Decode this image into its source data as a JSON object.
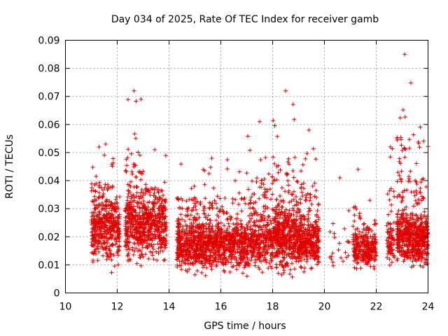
{
  "chart_data": {
    "type": "scatter",
    "title": "Day 034 of 2025, Rate Of TEC Index for receiver gamb",
    "xlabel": "GPS time / hours",
    "ylabel": "ROTI / TECUs",
    "xlim": [
      10,
      24
    ],
    "ylim": [
      0,
      0.09
    ],
    "x_ticks": [
      10,
      12,
      14,
      16,
      18,
      20,
      22,
      24
    ],
    "x_tick_labels": [
      "10",
      "12",
      "14",
      "16",
      "18",
      "20",
      "22",
      "24"
    ],
    "y_ticks": [
      0,
      0.01,
      0.02,
      0.03,
      0.04,
      0.05,
      0.06,
      0.07,
      0.08,
      0.09
    ],
    "y_tick_labels": [
      "0",
      "0.01",
      "0.02",
      "0.03",
      "0.04",
      "0.05",
      "0.06",
      "0.07",
      "0.08",
      "0.09"
    ],
    "grid": true,
    "marker": "+",
    "color": "#e00000",
    "series": [
      {
        "name": "ROTI",
        "clusters": [
          {
            "x_range": [
              11.0,
              12.1
            ],
            "y_min": 0.005,
            "y_typ": 0.022,
            "y_max": 0.053,
            "count": 420
          },
          {
            "x_range": [
              12.3,
              13.0
            ],
            "y_min": 0.007,
            "y_typ": 0.024,
            "y_max": 0.072,
            "count": 320
          },
          {
            "x_range": [
              13.0,
              13.9
            ],
            "y_min": 0.008,
            "y_typ": 0.024,
            "y_max": 0.051,
            "count": 360
          },
          {
            "x_range": [
              14.3,
              17.0
            ],
            "y_min": 0.005,
            "y_typ": 0.017,
            "y_max": 0.048,
            "count": 1100
          },
          {
            "x_range": [
              17.0,
              18.0
            ],
            "y_min": 0.005,
            "y_typ": 0.018,
            "y_max": 0.061,
            "count": 380
          },
          {
            "x_range": [
              18.0,
              19.0
            ],
            "y_min": 0.004,
            "y_typ": 0.02,
            "y_max": 0.072,
            "count": 480
          },
          {
            "x_range": [
              19.0,
              19.8
            ],
            "y_min": 0.006,
            "y_typ": 0.018,
            "y_max": 0.058,
            "count": 360
          },
          {
            "x_range": [
              20.2,
              21.0
            ],
            "y_min": 0.007,
            "y_typ": 0.016,
            "y_max": 0.041,
            "count": 22
          },
          {
            "x_range": [
              21.1,
              21.5
            ],
            "y_min": 0.007,
            "y_typ": 0.016,
            "y_max": 0.044,
            "count": 120
          },
          {
            "x_range": [
              21.5,
              22.0
            ],
            "y_min": 0.006,
            "y_typ": 0.015,
            "y_max": 0.033,
            "count": 160
          },
          {
            "x_range": [
              22.4,
              22.7
            ],
            "y_min": 0.009,
            "y_typ": 0.018,
            "y_max": 0.052,
            "count": 80
          },
          {
            "x_range": [
              22.8,
              23.4
            ],
            "y_min": 0.007,
            "y_typ": 0.02,
            "y_max": 0.085,
            "count": 320
          },
          {
            "x_range": [
              23.4,
              24.0
            ],
            "y_min": 0.006,
            "y_typ": 0.019,
            "y_max": 0.059,
            "count": 320
          }
        ]
      }
    ]
  }
}
